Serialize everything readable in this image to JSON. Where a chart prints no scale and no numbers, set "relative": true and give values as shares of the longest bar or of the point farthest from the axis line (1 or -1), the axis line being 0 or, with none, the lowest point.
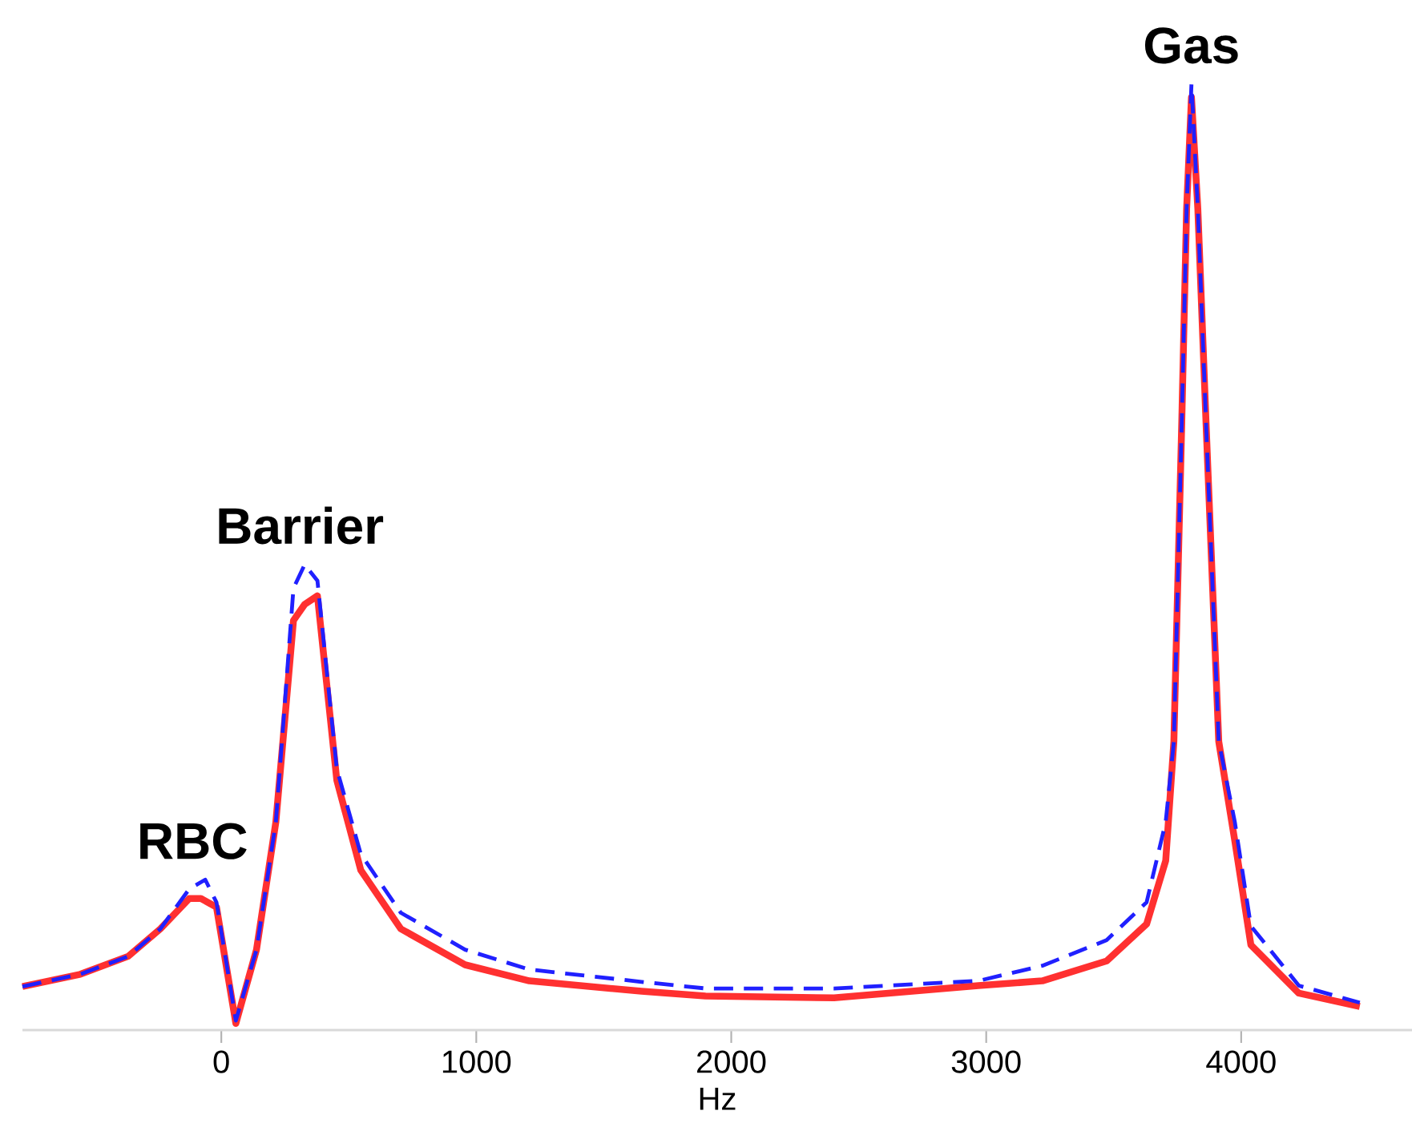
{
  "chart_data": {
    "type": "line",
    "xlabel": "Hz",
    "relative": true,
    "xlim": [
      -780,
      4670
    ],
    "xticks": [
      0,
      1000,
      2000,
      3000,
      4000
    ],
    "series": [
      {
        "color": "#ff3030",
        "line_style": "solid",
        "x": [
          -780,
          -553,
          -365,
          -239,
          -126,
          -80,
          -19,
          57,
          138,
          214,
          283,
          327,
          377,
          453,
          547,
          704,
          956,
          1208,
          1648,
          1899,
          2403,
          2969,
          3220,
          3472,
          3629,
          3704,
          3736,
          3767,
          3786,
          3805,
          3830,
          3862,
          3912,
          3975,
          4038,
          4226,
          4465
        ],
        "values": [
          0.046,
          0.059,
          0.078,
          0.107,
          0.139,
          0.139,
          0.13,
          0.007,
          0.085,
          0.22,
          0.433,
          0.45,
          0.459,
          0.264,
          0.169,
          0.107,
          0.069,
          0.052,
          0.041,
          0.036,
          0.034,
          0.047,
          0.052,
          0.073,
          0.112,
          0.179,
          0.305,
          0.643,
          0.868,
          0.986,
          0.868,
          0.643,
          0.305,
          0.2,
          0.09,
          0.039,
          0.025
        ]
      },
      {
        "color": "#2020ff",
        "line_style": "dashed",
        "x": [
          -780,
          -553,
          -365,
          -239,
          -126,
          -63,
          -19,
          57,
          138,
          214,
          283,
          327,
          377,
          453,
          547,
          704,
          956,
          1208,
          1648,
          1899,
          2403,
          2969,
          3220,
          3472,
          3629,
          3704,
          3736,
          3767,
          3786,
          3805,
          3830,
          3862,
          3912,
          3975,
          4038,
          4226,
          4465
        ],
        "values": [
          0.046,
          0.059,
          0.078,
          0.107,
          0.149,
          0.159,
          0.135,
          0.01,
          0.085,
          0.22,
          0.467,
          0.492,
          0.475,
          0.276,
          0.186,
          0.124,
          0.085,
          0.064,
          0.051,
          0.044,
          0.044,
          0.052,
          0.068,
          0.095,
          0.135,
          0.22,
          0.305,
          0.643,
          0.868,
          1.0,
          0.868,
          0.643,
          0.305,
          0.22,
          0.11,
          0.047,
          0.029
        ]
      }
    ],
    "annotations": [
      {
        "text": "RBC",
        "x": -113,
        "y": 0.159
      },
      {
        "text": "Barrier",
        "x": 308,
        "y": 0.492
      },
      {
        "text": "Gas",
        "x": 3805,
        "y": 1.0
      }
    ]
  }
}
